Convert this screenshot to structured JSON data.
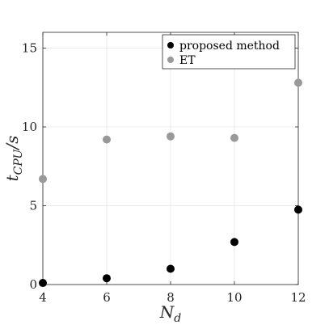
{
  "chart_data": {
    "type": "scatter",
    "xlabel_main": "N",
    "xlabel_sub": "d",
    "ylabel_main": "t",
    "ylabel_sub": "CPU",
    "ylabel_suffix": "/s",
    "xlim": [
      4,
      12
    ],
    "ylim": [
      0,
      16
    ],
    "xticks": [
      4,
      6,
      8,
      10,
      12
    ],
    "yticks": [
      0,
      5,
      10,
      15
    ],
    "grid": true,
    "legend_position": "top-right",
    "series": [
      {
        "name": "proposed method",
        "color": "#000000",
        "x": [
          4,
          6,
          8,
          10,
          12
        ],
        "y": [
          0.1,
          0.4,
          1.0,
          2.7,
          4.75
        ]
      },
      {
        "name": "ET",
        "color": "#999999",
        "x": [
          4,
          6,
          8,
          10,
          12
        ],
        "y": [
          6.7,
          9.2,
          9.4,
          9.3,
          12.8
        ]
      }
    ]
  }
}
